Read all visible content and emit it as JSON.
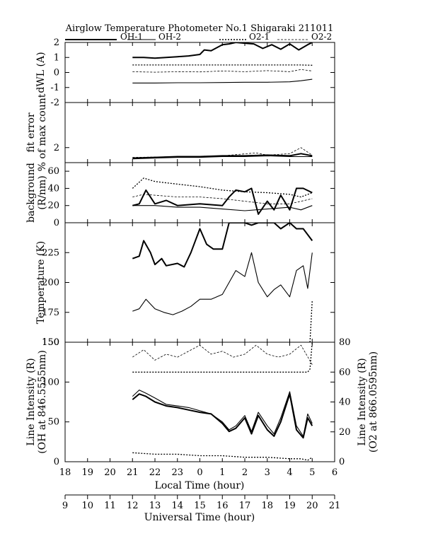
{
  "chart_data": {
    "type": "line",
    "title": "Airglow Temperature Photometer No.1  Shigaraki  211011",
    "legend": {
      "placement": "top",
      "entries": [
        {
          "label": "OH-1",
          "style": "solid-thick"
        },
        {
          "label": "OH-2",
          "style": "solid-thin"
        },
        {
          "label": "O2-1",
          "style": "dotted"
        },
        {
          "label": "O2-2",
          "style": "dashed-thin"
        }
      ]
    },
    "x_axes": {
      "local_time": {
        "label": "Local Time (hour)",
        "ticks": [
          "18",
          "19",
          "20",
          "21",
          "22",
          "23",
          "0",
          "1",
          "2",
          "3",
          "4",
          "5",
          "6"
        ]
      },
      "universal_time": {
        "label": "Universal Time (hour)",
        "ticks": [
          "9",
          "10",
          "11",
          "12",
          "13",
          "14",
          "15",
          "16",
          "17",
          "18",
          "19",
          "20",
          "21"
        ]
      },
      "range_ut": [
        9,
        21
      ]
    },
    "panels": [
      {
        "id": "dwl",
        "ylabel": "dWL (A)",
        "ylim": [
          -2,
          2
        ],
        "yticks": [
          "-2",
          "-1",
          "0",
          "1",
          "2"
        ],
        "series": [
          {
            "name": "OH-1",
            "x": [
              12,
              12.5,
              13,
              13.5,
              14,
              14.5,
              15,
              15.2,
              15.5,
              16,
              16.3,
              16.6,
              17,
              17.4,
              17.8,
              18.2,
              18.6,
              19,
              19.4,
              19.8,
              20
            ],
            "y": [
              1.0,
              1.0,
              0.95,
              1.0,
              1.05,
              1.1,
              1.2,
              1.5,
              1.45,
              1.85,
              1.9,
              2.0,
              1.95,
              1.9,
              1.6,
              1.85,
              1.55,
              1.9,
              1.5,
              1.85,
              2.0
            ]
          },
          {
            "name": "OH-2",
            "x": [
              12,
              13,
              14,
              15,
              16,
              17,
              18,
              19,
              19.5,
              20
            ],
            "y": [
              -0.7,
              -0.7,
              -0.68,
              -0.68,
              -0.67,
              -0.65,
              -0.65,
              -0.62,
              -0.55,
              -0.45
            ]
          },
          {
            "name": "O2-1",
            "x": [
              12,
              14,
              16,
              18,
              19.5,
              20
            ],
            "y": [
              0.5,
              0.5,
              0.5,
              0.5,
              0.5,
              0.48
            ]
          },
          {
            "name": "O2-2",
            "x": [
              12,
              13,
              14,
              15,
              16,
              17,
              18,
              19,
              19.5,
              20
            ],
            "y": [
              0.05,
              0.02,
              0.05,
              0.04,
              0.1,
              0.05,
              0.12,
              0.05,
              0.2,
              0.1
            ]
          }
        ]
      },
      {
        "id": "fit",
        "ylabel": "fit error",
        "ylabel2": "% of max count",
        "ylim": [
          0,
          8
        ],
        "yticks": [
          "2"
        ],
        "series": [
          {
            "name": "OH-1",
            "x": [
              12,
              13,
              14,
              15,
              16,
              17,
              18,
              19,
              19.5,
              20
            ],
            "y": [
              0.6,
              0.7,
              0.8,
              0.8,
              0.9,
              0.9,
              1.0,
              0.9,
              1.2,
              0.9
            ]
          },
          {
            "name": "OH-2",
            "x": [
              12,
              13,
              14,
              15,
              16,
              17,
              18,
              19,
              20
            ],
            "y": [
              0.5,
              0.6,
              0.7,
              0.7,
              0.8,
              0.8,
              0.9,
              0.8,
              0.8
            ]
          },
          {
            "name": "O2-2",
            "x": [
              12,
              14,
              16,
              17.5,
              18,
              19,
              19.5,
              20
            ],
            "y": [
              0.7,
              0.8,
              0.9,
              1.3,
              1.0,
              1.2,
              2.0,
              1.0
            ]
          }
        ]
      },
      {
        "id": "background",
        "ylabel": "background",
        "ylabel2": "(R/nm)",
        "ylim": [
          0,
          70
        ],
        "yticks": [
          "0",
          "20",
          "40",
          "60"
        ],
        "series": [
          {
            "name": "OH-1",
            "x": [
              12,
              12.3,
              12.6,
              13,
              13.5,
              14,
              15,
              16,
              16.3,
              16.6,
              17,
              17.3,
              17.6,
              18,
              18.3,
              18.6,
              19,
              19.3,
              19.6,
              20
            ],
            "y": [
              20,
              22,
              38,
              22,
              26,
              20,
              22,
              20,
              30,
              38,
              36,
              40,
              10,
              25,
              15,
              32,
              15,
              40,
              40,
              35
            ]
          },
          {
            "name": "OH-2",
            "x": [
              12,
              13,
              14,
              15,
              16,
              17,
              18,
              19,
              19.5,
              20
            ],
            "y": [
              20,
              20,
              18,
              18,
              16,
              14,
              16,
              18,
              15,
              20
            ]
          },
          {
            "name": "O2-1",
            "x": [
              12,
              12.5,
              13,
              14,
              15,
              16,
              17,
              18,
              19,
              19.5,
              20
            ],
            "y": [
              40,
              52,
              48,
              45,
              42,
              38,
              36,
              35,
              33,
              30,
              35
            ]
          },
          {
            "name": "O2-2",
            "x": [
              12,
              12.5,
              13,
              14,
              15,
              16,
              17,
              18,
              19,
              20
            ],
            "y": [
              30,
              33,
              32,
              30,
              30,
              28,
              25,
              22,
              22,
              28
            ]
          }
        ]
      },
      {
        "id": "temperature",
        "ylabel": "Temperature (K)",
        "ylim": [
          150,
          250
        ],
        "yticks": [
          "150",
          "175",
          "200",
          "225"
        ],
        "series": [
          {
            "name": "OH-1",
            "x": [
              12,
              12.3,
              12.5,
              12.8,
              13,
              13.3,
              13.5,
              14,
              14.3,
              14.6,
              15,
              15.3,
              15.6,
              16,
              16.3,
              16.6,
              17,
              17.3,
              17.6,
              18,
              18.3,
              18.6,
              19,
              19.3,
              19.6,
              20
            ],
            "y": [
              220,
              222,
              235,
              225,
              215,
              220,
              214,
              216,
              213,
              225,
              245,
              232,
              228,
              228,
              250,
              250,
              250,
              248,
              250,
              250,
              250,
              245,
              250,
              245,
              245,
              235
            ]
          },
          {
            "name": "OH-2",
            "x": [
              12,
              12.3,
              12.6,
              13,
              13.4,
              13.8,
              14.2,
              14.6,
              15,
              15.5,
              16,
              16.3,
              16.6,
              17,
              17.3,
              17.6,
              18,
              18.3,
              18.6,
              19,
              19.3,
              19.6,
              19.8,
              20
            ],
            "y": [
              176,
              178,
              186,
              178,
              175,
              173,
              176,
              180,
              186,
              186,
              190,
              200,
              210,
              205,
              225,
              200,
              188,
              194,
              198,
              188,
              210,
              214,
              195,
              225
            ]
          },
          {
            "name": "O2-1",
            "x": [
              19.9,
              20
            ],
            "y": [
              150,
              185
            ]
          }
        ]
      },
      {
        "id": "intensity",
        "ylabel": "Line Intensity (R)",
        "ylabel2": "(OH at 846.5555nm)",
        "ylabel_right": "Line Intensity (R)",
        "ylabel_right2": "(O2 at 866.0595nm)",
        "ylim": [
          0,
          150
        ],
        "yticks": [
          "0",
          "50",
          "100",
          "150"
        ],
        "ylim_right": [
          0,
          80
        ],
        "yticks_right": [
          "0",
          "20",
          "40",
          "60",
          "80"
        ],
        "series": [
          {
            "name": "OH-1",
            "x": [
              12,
              12.3,
              12.6,
              13,
              13.5,
              14,
              14.5,
              15,
              15.5,
              16,
              16.3,
              16.6,
              17,
              17.3,
              17.6,
              18,
              18.3,
              18.6,
              19,
              19.3,
              19.6,
              19.8,
              20
            ],
            "y": [
              78,
              85,
              82,
              75,
              70,
              68,
              65,
              62,
              60,
              48,
              38,
              42,
              55,
              35,
              58,
              40,
              32,
              50,
              85,
              40,
              30,
              55,
              45
            ]
          },
          {
            "name": "OH-2",
            "x": [
              12,
              12.3,
              12.6,
              13,
              13.5,
              14,
              14.5,
              15,
              15.5,
              16,
              16.3,
              16.6,
              17,
              17.3,
              17.6,
              18,
              18.3,
              18.6,
              19,
              19.3,
              19.6,
              19.8,
              20
            ],
            "y": [
              82,
              90,
              86,
              80,
              72,
              70,
              68,
              64,
              60,
              50,
              40,
              45,
              58,
              38,
              62,
              45,
              35,
              55,
              88,
              45,
              32,
              60,
              48
            ]
          },
          {
            "name": "O2-1",
            "axis": "right",
            "x": [
              12,
              13,
              14,
              15,
              16,
              17,
              18,
              19,
              19.5,
              19.8,
              20
            ],
            "y": [
              6,
              5,
              5,
              4,
              4,
              3,
              3,
              2,
              2,
              1,
              3
            ]
          },
          {
            "name": "O2-1",
            "axis": "right",
            "x": [
              12,
              13,
              14,
              15,
              16,
              17,
              18,
              19,
              19.5,
              19.8,
              19.9,
              20
            ],
            "y": [
              60,
              60,
              60,
              60,
              60,
              60,
              60,
              60,
              60,
              60,
              62,
              80
            ]
          },
          {
            "name": "O2-2",
            "axis": "right",
            "x": [
              12,
              12.5,
              13,
              13.5,
              14,
              14.5,
              15,
              15.5,
              16,
              16.5,
              17,
              17.5,
              18,
              18.5,
              19,
              19.5,
              20
            ],
            "y": [
              70,
              75,
              68,
              72,
              70,
              74,
              78,
              72,
              74,
              70,
              72,
              78,
              72,
              70,
              72,
              78,
              65
            ]
          }
        ]
      }
    ]
  }
}
